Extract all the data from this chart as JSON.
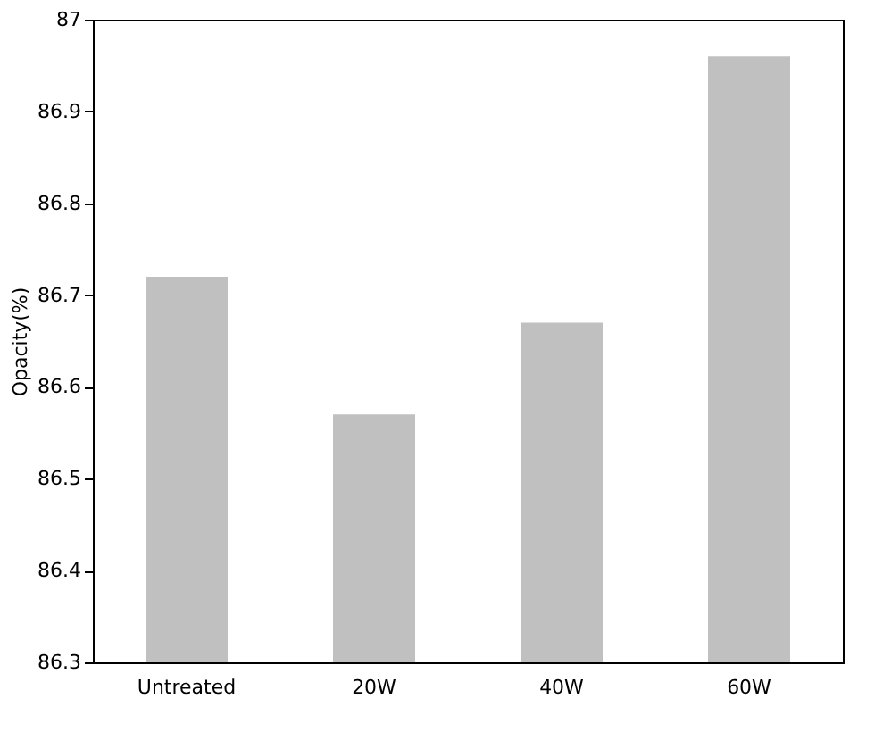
{
  "chart_data": {
    "type": "bar",
    "ylabel": "Opacity(%)",
    "categories": [
      "Untreated",
      "20W",
      "40W",
      "60W"
    ],
    "values": [
      86.72,
      86.57,
      86.67,
      86.96
    ],
    "color": "#c0c0c0",
    "ylim": [
      86.3,
      87
    ],
    "yticks": [
      86.3,
      86.4,
      86.5,
      86.6,
      86.7,
      86.8,
      86.9,
      87
    ],
    "grid": false
  }
}
